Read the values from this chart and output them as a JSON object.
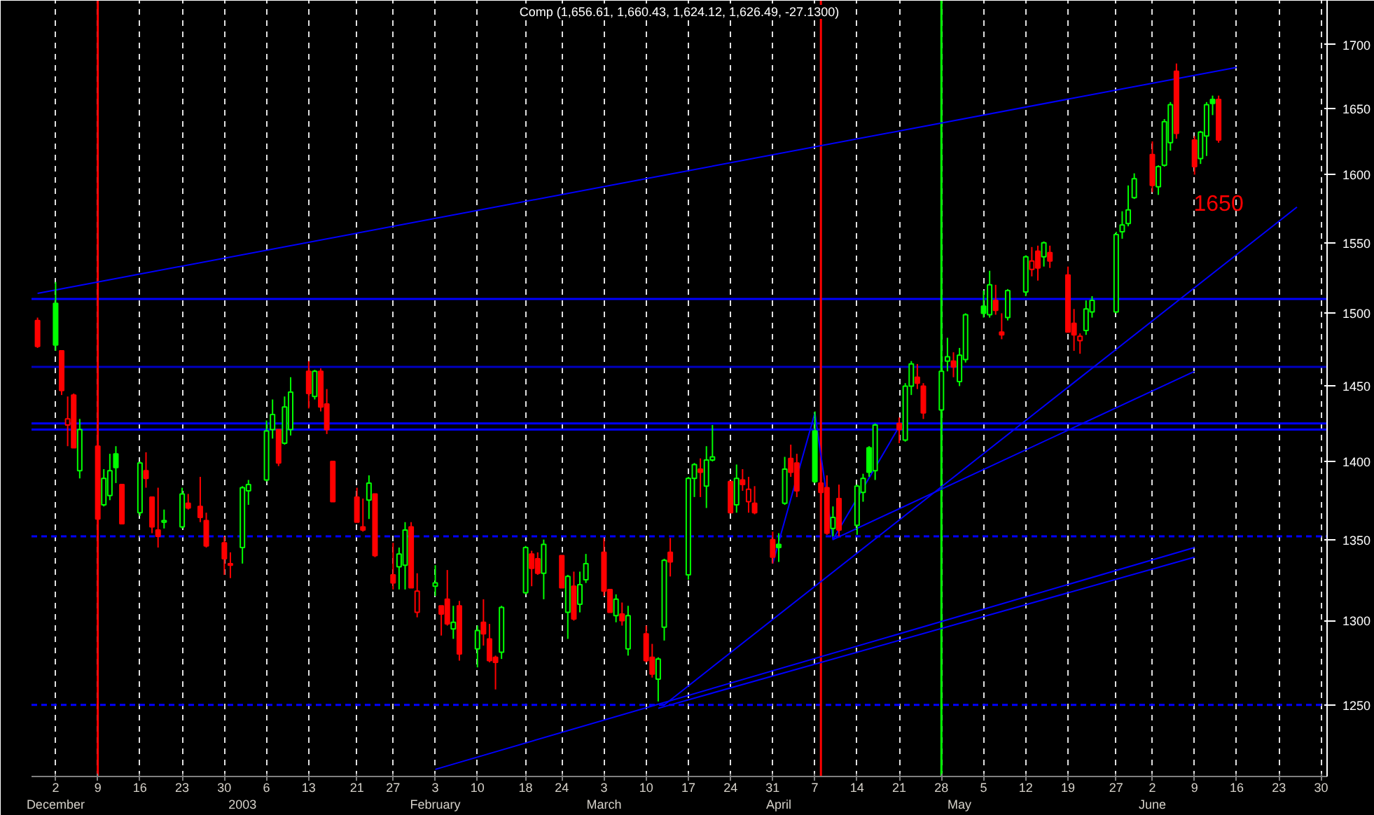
{
  "chart_data": {
    "type": "candlestick",
    "title": "Comp (1,656.61, 1,660.43, 1,624.12, 1,626.49, -27.1300)",
    "x": [
      "2002-11-29",
      "2002-12-02",
      "2002-12-03",
      "2002-12-04",
      "2002-12-05",
      "2002-12-06",
      "2002-12-09",
      "2002-12-10",
      "2002-12-11",
      "2002-12-12",
      "2002-12-13",
      "2002-12-16",
      "2002-12-17",
      "2002-12-18",
      "2002-12-19",
      "2002-12-20",
      "2002-12-23",
      "2002-12-24",
      "2002-12-26",
      "2002-12-27",
      "2002-12-30",
      "2002-12-31",
      "2003-01-02",
      "2003-01-03",
      "2003-01-06",
      "2003-01-07",
      "2003-01-08",
      "2003-01-09",
      "2003-01-10",
      "2003-01-13",
      "2003-01-14",
      "2003-01-15",
      "2003-01-16",
      "2003-01-17",
      "2003-01-21",
      "2003-01-22",
      "2003-01-23",
      "2003-01-24",
      "2003-01-27",
      "2003-01-28",
      "2003-01-29",
      "2003-01-30",
      "2003-01-31",
      "2003-02-03",
      "2003-02-04",
      "2003-02-05",
      "2003-02-06",
      "2003-02-07",
      "2003-02-10",
      "2003-02-11",
      "2003-02-12",
      "2003-02-13",
      "2003-02-14",
      "2003-02-18",
      "2003-02-19",
      "2003-02-20",
      "2003-02-21",
      "2003-02-24",
      "2003-02-25",
      "2003-02-26",
      "2003-02-27",
      "2003-02-28",
      "2003-03-03",
      "2003-03-04",
      "2003-03-05",
      "2003-03-06",
      "2003-03-07",
      "2003-03-10",
      "2003-03-11",
      "2003-03-12",
      "2003-03-13",
      "2003-03-14",
      "2003-03-17",
      "2003-03-18",
      "2003-03-19",
      "2003-03-20",
      "2003-03-21",
      "2003-03-24",
      "2003-03-25",
      "2003-03-26",
      "2003-03-27",
      "2003-03-28",
      "2003-03-31",
      "2003-04-01",
      "2003-04-02",
      "2003-04-03",
      "2003-04-04",
      "2003-04-07",
      "2003-04-08",
      "2003-04-09",
      "2003-04-10",
      "2003-04-11",
      "2003-04-14",
      "2003-04-15",
      "2003-04-16",
      "2003-04-17",
      "2003-04-21",
      "2003-04-22",
      "2003-04-23",
      "2003-04-24",
      "2003-04-25",
      "2003-04-28",
      "2003-04-29",
      "2003-04-30",
      "2003-05-01",
      "2003-05-02",
      "2003-05-05",
      "2003-05-06",
      "2003-05-07",
      "2003-05-08",
      "2003-05-09",
      "2003-05-12",
      "2003-05-13",
      "2003-05-14",
      "2003-05-15",
      "2003-05-16",
      "2003-05-19",
      "2003-05-20",
      "2003-05-21",
      "2003-05-22",
      "2003-05-23",
      "2003-05-27",
      "2003-05-28",
      "2003-05-29",
      "2003-05-30",
      "2003-06-02",
      "2003-06-03",
      "2003-06-04",
      "2003-06-05",
      "2003-06-06",
      "2003-06-09",
      "2003-06-10",
      "2003-06-11",
      "2003-06-12",
      "2003-06-13"
    ],
    "ohlc": [
      [
        1495,
        1497,
        1476,
        1477
      ],
      [
        1507,
        1522,
        1474,
        1478
      ],
      [
        1474,
        1474,
        1444,
        1447
      ],
      [
        1424,
        1443,
        1410,
        1428
      ],
      [
        1444,
        1445,
        1409,
        1409
      ],
      [
        1394,
        1428,
        1389,
        1421
      ],
      [
        1410,
        1410,
        1363,
        1363
      ],
      [
        1372,
        1395,
        1371,
        1389
      ],
      [
        1378,
        1405,
        1375,
        1394
      ],
      [
        1405,
        1410,
        1386,
        1396
      ],
      [
        1385,
        1385,
        1360,
        1360
      ],
      [
        1367,
        1400,
        1365,
        1399
      ],
      [
        1394,
        1406,
        1383,
        1389
      ],
      [
        1377,
        1377,
        1354,
        1358
      ],
      [
        1356,
        1383,
        1345,
        1352
      ],
      [
        1361,
        1369,
        1357,
        1362
      ],
      [
        1358,
        1383,
        1357,
        1379
      ],
      [
        1373,
        1379,
        1369,
        1370
      ],
      [
        1371,
        1390,
        1361,
        1364
      ],
      [
        1362,
        1367,
        1345,
        1346
      ],
      [
        1348,
        1352,
        1328,
        1338
      ],
      [
        1335,
        1342,
        1326,
        1334
      ],
      [
        1345,
        1384,
        1335,
        1383
      ],
      [
        1381,
        1388,
        1372,
        1385
      ],
      [
        1388,
        1427,
        1387,
        1420
      ],
      [
        1421,
        1441,
        1415,
        1431
      ],
      [
        1421,
        1421,
        1397,
        1399
      ],
      [
        1412,
        1443,
        1411,
        1436
      ],
      [
        1421,
        1456,
        1417,
        1446
      ],
      [
        1460,
        1467,
        1435,
        1445
      ],
      [
        1443,
        1461,
        1441,
        1460
      ],
      [
        1460,
        1462,
        1433,
        1436
      ],
      [
        1438,
        1448,
        1418,
        1421
      ],
      [
        1400,
        1400,
        1374,
        1374
      ],
      [
        1377,
        1383,
        1361,
        1361
      ],
      [
        1358,
        1376,
        1355,
        1356
      ],
      [
        1375,
        1391,
        1363,
        1386
      ],
      [
        1379,
        1379,
        1339,
        1340
      ],
      [
        1328,
        1348,
        1319,
        1323
      ],
      [
        1333,
        1345,
        1319,
        1341
      ],
      [
        1334,
        1361,
        1319,
        1356
      ],
      [
        1358,
        1361,
        1320,
        1320
      ],
      [
        1305,
        1329,
        1302,
        1318
      ],
      [
        1321,
        1334,
        1315,
        1323
      ],
      [
        1309,
        1309,
        1291,
        1304
      ],
      [
        1313,
        1331,
        1297,
        1298
      ],
      [
        1295,
        1309,
        1289,
        1299
      ],
      [
        1309,
        1312,
        1276,
        1280
      ],
      [
        1283,
        1297,
        1272,
        1294
      ],
      [
        1299,
        1313,
        1285,
        1292
      ],
      [
        1289,
        1298,
        1275,
        1276
      ],
      [
        1278,
        1279,
        1259,
        1275
      ],
      [
        1281,
        1309,
        1277,
        1308
      ],
      [
        1317,
        1346,
        1316,
        1345
      ],
      [
        1341,
        1343,
        1321,
        1332
      ],
      [
        1338,
        1342,
        1328,
        1329
      ],
      [
        1329,
        1350,
        1313,
        1347
      ],
      [
        1340,
        1340,
        1320,
        1320
      ],
      [
        1305,
        1328,
        1289,
        1327
      ],
      [
        1321,
        1330,
        1300,
        1301
      ],
      [
        1310,
        1330,
        1305,
        1322
      ],
      [
        1325,
        1341,
        1323,
        1335
      ],
      [
        1342,
        1351,
        1315,
        1318
      ],
      [
        1319,
        1319,
        1305,
        1305
      ],
      [
        1303,
        1316,
        1299,
        1313
      ],
      [
        1304,
        1311,
        1297,
        1300
      ],
      [
        1283,
        1309,
        1279,
        1303
      ],
      [
        1292,
        1297,
        1275,
        1276
      ],
      [
        1278,
        1286,
        1266,
        1268
      ],
      [
        1265,
        1278,
        1252,
        1277
      ],
      [
        1296,
        1338,
        1288,
        1337
      ],
      [
        1342,
        1351,
        1327,
        1336
      ],
      [
        1328,
        1390,
        1325,
        1389
      ],
      [
        1389,
        1399,
        1377,
        1398
      ],
      [
        1395,
        1402,
        1377,
        1393
      ],
      [
        1384,
        1410,
        1370,
        1401
      ],
      [
        1401,
        1424,
        1400,
        1403
      ],
      [
        1387,
        1387,
        1367,
        1367
      ],
      [
        1372,
        1398,
        1367,
        1389
      ],
      [
        1388,
        1395,
        1381,
        1385
      ],
      [
        1374,
        1390,
        1367,
        1382
      ],
      [
        1373,
        1384,
        1366,
        1367
      ],
      [
        1350,
        1355,
        1335,
        1339
      ],
      [
        1347,
        1354,
        1336,
        1345
      ],
      [
        1373,
        1403,
        1372,
        1395
      ],
      [
        1402,
        1411,
        1390,
        1393
      ],
      [
        1399,
        1405,
        1377,
        1381
      ],
      [
        1420,
        1433,
        1386,
        1387
      ],
      [
        1386,
        1390,
        1375,
        1380
      ],
      [
        1383,
        1391,
        1353,
        1354
      ],
      [
        1357,
        1371,
        1352,
        1364
      ],
      [
        1376,
        1385,
        1352,
        1356
      ],
      [
        1359,
        1385,
        1353,
        1384
      ],
      [
        1380,
        1392,
        1374,
        1389
      ],
      [
        1409,
        1410,
        1390,
        1393
      ],
      [
        1394,
        1425,
        1388,
        1424
      ],
      [
        1425,
        1429,
        1412,
        1421
      ],
      [
        1414,
        1452,
        1413,
        1450
      ],
      [
        1450,
        1467,
        1444,
        1465
      ],
      [
        1456,
        1465,
        1448,
        1452
      ],
      [
        1450,
        1452,
        1428,
        1432
      ],
      [
        1434,
        1462,
        1432,
        1460
      ],
      [
        1467,
        1483,
        1460,
        1470
      ],
      [
        1467,
        1473,
        1456,
        1463
      ],
      [
        1453,
        1476,
        1450,
        1471
      ],
      [
        1468,
        1500,
        1466,
        1499
      ],
      [
        1505,
        1516,
        1497,
        1500
      ],
      [
        1499,
        1530,
        1497,
        1520
      ],
      [
        1509,
        1520,
        1499,
        1502
      ],
      [
        1487,
        1500,
        1482,
        1485
      ],
      [
        1497,
        1517,
        1495,
        1516
      ],
      [
        1515,
        1541,
        1512,
        1540
      ],
      [
        1531,
        1547,
        1526,
        1537
      ],
      [
        1544,
        1548,
        1523,
        1532
      ],
      [
        1540,
        1551,
        1533,
        1550
      ],
      [
        1543,
        1548,
        1532,
        1537
      ],
      [
        1527,
        1533,
        1487,
        1487
      ],
      [
        1493,
        1503,
        1474,
        1485
      ],
      [
        1481,
        1486,
        1472,
        1484
      ],
      [
        1488,
        1509,
        1485,
        1503
      ],
      [
        1501,
        1512,
        1497,
        1509
      ],
      [
        1501,
        1558,
        1500,
        1556
      ],
      [
        1558,
        1573,
        1553,
        1563
      ],
      [
        1564,
        1592,
        1562,
        1574
      ],
      [
        1583,
        1601,
        1582,
        1597
      ],
      [
        1615,
        1625,
        1587,
        1592
      ],
      [
        1591,
        1607,
        1585,
        1606
      ],
      [
        1607,
        1642,
        1606,
        1640
      ],
      [
        1624,
        1655,
        1618,
        1653
      ],
      [
        1679,
        1685,
        1627,
        1631
      ],
      [
        1626,
        1629,
        1600,
        1606
      ],
      [
        1612,
        1633,
        1608,
        1632
      ],
      [
        1629,
        1655,
        1614,
        1653
      ],
      [
        1657,
        1660,
        1645,
        1654
      ],
      [
        1657,
        1660,
        1624,
        1626
      ]
    ],
    "colors": [
      "#ff0000",
      "#00ff00",
      "#ff0000",
      "#ff0000",
      "#ff0000",
      "#00ff00",
      "#ff0000",
      "#00ff00",
      "#00ff00",
      "#00ff00",
      "#ff0000",
      "#00ff00",
      "#ff0000",
      "#ff0000",
      "#ff0000",
      "#00ff00",
      "#00ff00",
      "#ff0000",
      "#ff0000",
      "#ff0000",
      "#ff0000",
      "#ff0000",
      "#00ff00",
      "#00ff00",
      "#00ff00",
      "#00ff00",
      "#ff0000",
      "#00ff00",
      "#00ff00",
      "#ff0000",
      "#00ff00",
      "#ff0000",
      "#ff0000",
      "#ff0000",
      "#ff0000",
      "#ff0000",
      "#00ff00",
      "#ff0000",
      "#ff0000",
      "#00ff00",
      "#00ff00",
      "#ff0000",
      "#ff0000",
      "#00ff00",
      "#ff0000",
      "#ff0000",
      "#00ff00",
      "#ff0000",
      "#00ff00",
      "#ff0000",
      "#ff0000",
      "#ff0000",
      "#00ff00",
      "#00ff00",
      "#ff0000",
      "#ff0000",
      "#00ff00",
      "#ff0000",
      "#00ff00",
      "#ff0000",
      "#00ff00",
      "#00ff00",
      "#ff0000",
      "#ff0000",
      "#00ff00",
      "#ff0000",
      "#00ff00",
      "#ff0000",
      "#ff0000",
      "#00ff00",
      "#00ff00",
      "#ff0000",
      "#00ff00",
      "#00ff00",
      "#ff0000",
      "#00ff00",
      "#00ff00",
      "#ff0000",
      "#00ff00",
      "#ff0000",
      "#ff0000",
      "#ff0000",
      "#ff0000",
      "#00ff00",
      "#00ff00",
      "#ff0000",
      "#ff0000",
      "#00ff00",
      "#ff0000",
      "#ff0000",
      "#00ff00",
      "#ff0000",
      "#00ff00",
      "#00ff00",
      "#00ff00",
      "#00ff00",
      "#ff0000",
      "#00ff00",
      "#00ff00",
      "#ff0000",
      "#ff0000",
      "#00ff00",
      "#00ff00",
      "#ff0000",
      "#00ff00",
      "#00ff00",
      "#00ff00",
      "#00ff00",
      "#ff0000",
      "#ff0000",
      "#00ff00",
      "#00ff00",
      "#ff0000",
      "#ff0000",
      "#00ff00",
      "#ff0000",
      "#ff0000",
      "#ff0000",
      "#ff0000",
      "#00ff00",
      "#00ff00",
      "#00ff00",
      "#00ff00",
      "#00ff00",
      "#00ff00",
      "#ff0000",
      "#00ff00",
      "#00ff00",
      "#00ff00",
      "#ff0000",
      "#ff0000",
      "#00ff00",
      "#00ff00",
      "#00ff00",
      "#ff0000"
    ],
    "series": [
      {
        "type": "line",
        "color": "#0000ff",
        "x": [
          "2002-11-29",
          "2003-06-16"
        ],
        "values": [
          1514,
          1682
        ]
      },
      {
        "type": "line",
        "color": "#0000ff",
        "x": [
          "2003-03-13",
          "2003-06-26"
        ],
        "values": [
          1250,
          1576
        ]
      },
      {
        "type": "line",
        "color": "#0000ff",
        "x": [
          "2003-02-03",
          "2003-06-09"
        ],
        "values": [
          1213,
          1345
        ]
      },
      {
        "type": "line",
        "color": "#0000ff",
        "x": [
          "2003-03-12",
          "2003-06-09"
        ],
        "values": [
          1248,
          1339
        ]
      },
      {
        "type": "line",
        "color": "#0000ff",
        "x": [
          "2003-04-10",
          "2003-06-09"
        ],
        "values": [
          1350,
          1460
        ]
      },
      {
        "type": "line",
        "color": "#0000ff",
        "x": [
          "2003-03-31",
          "2003-04-07",
          "2003-04-10",
          "2003-04-21"
        ],
        "values": [
          1335,
          1432,
          1350,
          1423
        ]
      }
    ],
    "ref_lines": [
      {
        "axis": "y",
        "value": 1510,
        "color": "#0000ff"
      },
      {
        "axis": "y",
        "value": 1463,
        "color": "#0000c0"
      },
      {
        "axis": "y",
        "value": 1425,
        "color": "#0000ff"
      },
      {
        "axis": "y",
        "value": 1421,
        "color": "#0000ff"
      },
      {
        "axis": "y",
        "value": 1352,
        "color": "#0000ff",
        "line_style": "dashed"
      },
      {
        "axis": "y",
        "value": 1250,
        "color": "#0000ff",
        "line_style": "dashed"
      },
      {
        "axis": "x",
        "value": "2002-12-09",
        "color": "#ff0000"
      },
      {
        "axis": "x",
        "value": "2003-04-08",
        "color": "#ff0000"
      },
      {
        "axis": "x",
        "value": "2003-04-28",
        "color": "#00ff00"
      }
    ],
    "annotations": [
      "1650"
    ],
    "x2lim": [
      "2002-11-28",
      "2003-07-01"
    ],
    "x2ticks": [
      {
        "value": "2002-12-02",
        "label": "December"
      },
      {
        "value": "2003-01-02",
        "label": "2003"
      },
      {
        "value": "2003-02-03",
        "label": "February"
      },
      {
        "value": "2003-03-03",
        "label": "March"
      },
      {
        "value": "2003-04-01",
        "label": "April"
      },
      {
        "value": "2003-05-01",
        "label": "May"
      },
      {
        "value": "2003-06-02",
        "label": "June"
      }
    ],
    "log": true,
    "ylim": [
      1209,
      1735
    ],
    "yticks": [
      1250,
      1300,
      1350,
      1400,
      1450,
      1500,
      1550,
      1600,
      1650,
      1700
    ],
    "xlim": [
      "2002-11-28",
      "2003-07-01"
    ],
    "xticks": [
      {
        "value": "2002-12-02",
        "label": "2"
      },
      {
        "value": "2002-12-09",
        "label": "9"
      },
      {
        "value": "2002-12-16",
        "label": "16"
      },
      {
        "value": "2002-12-23",
        "label": "23"
      },
      {
        "value": "2002-12-30",
        "label": "30"
      },
      {
        "value": "2003-01-06",
        "label": "6"
      },
      {
        "value": "2003-01-13",
        "label": "13"
      },
      {
        "value": "2003-01-21",
        "label": "21"
      },
      {
        "value": "2003-01-27",
        "label": "27"
      },
      {
        "value": "2003-02-03",
        "label": "3"
      },
      {
        "value": "2003-02-10",
        "label": "10"
      },
      {
        "value": "2003-02-18",
        "label": "18"
      },
      {
        "value": "2003-02-24",
        "label": "24"
      },
      {
        "value": "2003-03-03",
        "label": "3"
      },
      {
        "value": "2003-03-10",
        "label": "10"
      },
      {
        "value": "2003-03-17",
        "label": "17"
      },
      {
        "value": "2003-03-24",
        "label": "24"
      },
      {
        "value": "2003-03-31",
        "label": "31"
      },
      {
        "value": "2003-04-07",
        "label": "7"
      },
      {
        "value": "2003-04-14",
        "label": "14"
      },
      {
        "value": "2003-04-21",
        "label": "21"
      },
      {
        "value": "2003-04-28",
        "label": "28"
      },
      {
        "value": "2003-05-05",
        "label": "5"
      },
      {
        "value": "2003-05-12",
        "label": "12"
      },
      {
        "value": "2003-05-19",
        "label": "19"
      },
      {
        "value": "2003-05-27",
        "label": "27"
      },
      {
        "value": "2003-06-02",
        "label": "2"
      },
      {
        "value": "2003-06-09",
        "label": "9"
      },
      {
        "value": "2003-06-16",
        "label": "16"
      },
      {
        "value": "2003-06-23",
        "label": "23"
      },
      {
        "value": "2003-06-30",
        "label": "30"
      }
    ],
    "grid": "x"
  }
}
